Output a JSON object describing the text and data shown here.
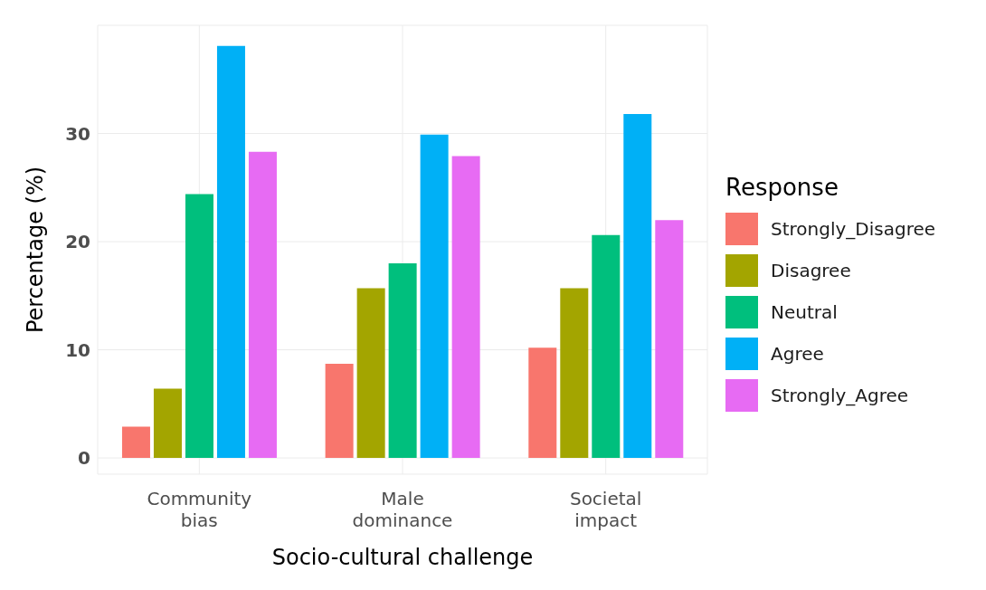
{
  "chart_data": {
    "type": "bar",
    "xlabel": "Socio-cultural challenge",
    "ylabel": "Percentage (%)",
    "legend_title": "Response",
    "categories": [
      "Community bias",
      "Male dominance",
      "Societal impact"
    ],
    "series": [
      {
        "name": "Strongly_Disagree",
        "color": "#f8766d",
        "values": [
          2.9,
          8.7,
          10.2
        ]
      },
      {
        "name": "Disagree",
        "color": "#a3a500",
        "values": [
          6.4,
          15.7,
          15.7
        ]
      },
      {
        "name": "Neutral",
        "color": "#00bf7d",
        "values": [
          24.4,
          18.0,
          20.6
        ]
      },
      {
        "name": "Agree",
        "color": "#00b0f6",
        "values": [
          38.1,
          29.9,
          31.8
        ]
      },
      {
        "name": "Strongly_Agree",
        "color": "#e76bf3",
        "values": [
          28.3,
          27.9,
          22.0
        ]
      }
    ],
    "ylim": [
      -1.5,
      40
    ],
    "yticks": [
      0,
      10,
      20,
      30
    ],
    "grid": true,
    "legend": "right"
  }
}
